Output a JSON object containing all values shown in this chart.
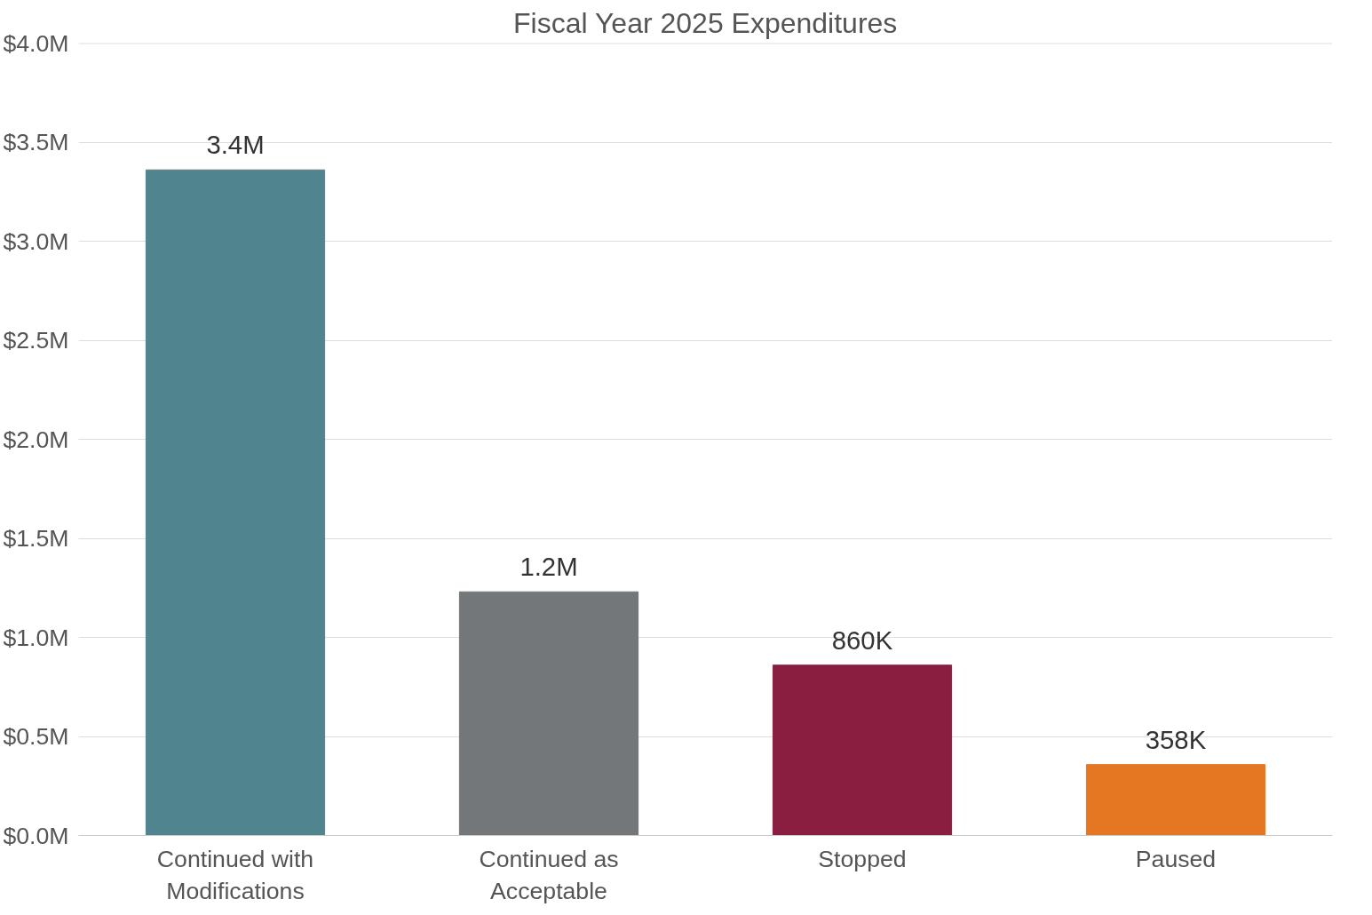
{
  "chart_data": {
    "type": "bar",
    "title": "Fiscal Year 2025 Expenditures",
    "categories": [
      "Continued with Modifications",
      "Continued as Acceptable",
      "Stopped",
      "Paused"
    ],
    "values": [
      3360000,
      1230000,
      860000,
      358000
    ],
    "colors": [
      "#508590",
      "#737779",
      "#8a1e41",
      "#e57723"
    ],
    "value_labels": [
      "3.4M",
      "1.2M",
      "860K",
      "358K"
    ],
    "ylim": [
      0,
      4000000
    ],
    "yticks": [
      {
        "value": 0,
        "label": "$0.0M"
      },
      {
        "value": 500000,
        "label": "$0.5M"
      },
      {
        "value": 1000000,
        "label": "$1.0M"
      },
      {
        "value": 1500000,
        "label": "$1.5M"
      },
      {
        "value": 2000000,
        "label": "$2.0M"
      },
      {
        "value": 2500000,
        "label": "$2.5M"
      },
      {
        "value": 3000000,
        "label": "$3.0M"
      },
      {
        "value": 3500000,
        "label": "$3.5M"
      },
      {
        "value": 4000000,
        "label": "$4.0M"
      }
    ],
    "grid": "y"
  }
}
